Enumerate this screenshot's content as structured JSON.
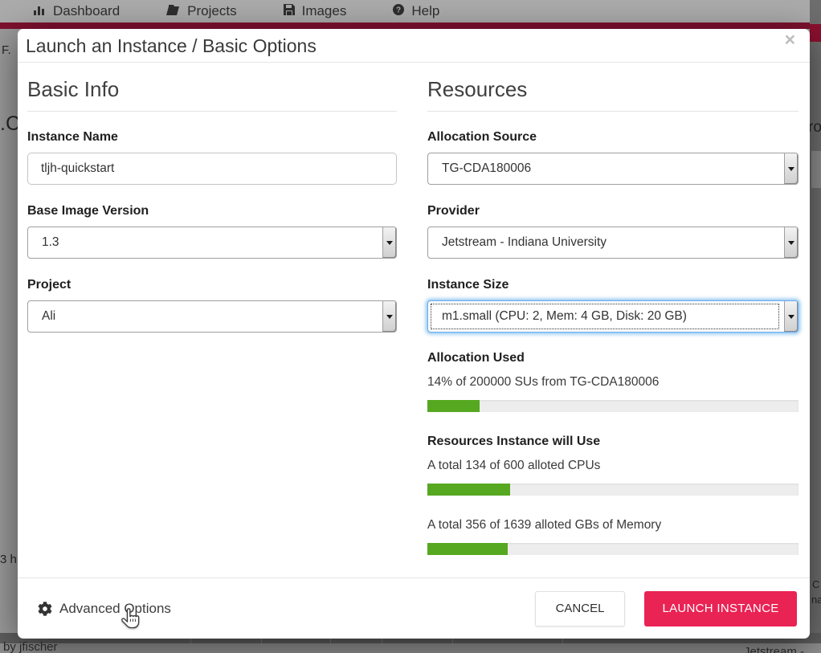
{
  "background": {
    "nav_items": [
      {
        "label": "Dashboard",
        "icon": "bar-chart-icon"
      },
      {
        "label": "Projects",
        "icon": "folder-icon"
      },
      {
        "label": "Images",
        "icon": "floppy-icon"
      },
      {
        "label": "Help",
        "icon": "help-icon"
      }
    ],
    "fragments": {
      "left_top": "F.",
      "left_mid": ".C",
      "right_mid": "ro",
      "left_bottom": "3 h",
      "right_c": "C",
      "right_na": "na",
      "footer_left": "by jfischer",
      "footer_right": "Jetstream - TACC"
    }
  },
  "modal": {
    "title": "Launch an Instance / Basic Options",
    "close_label": "×",
    "basic": {
      "heading": "Basic Info",
      "instance_name": {
        "label": "Instance Name",
        "value": "tljh-quickstart"
      },
      "base_image_version": {
        "label": "Base Image Version",
        "value": "1.3"
      },
      "project": {
        "label": "Project",
        "value": "Ali"
      }
    },
    "resources": {
      "heading": "Resources",
      "allocation_source": {
        "label": "Allocation Source",
        "value": "TG-CDA180006"
      },
      "provider": {
        "label": "Provider",
        "value": "Jetstream - Indiana University"
      },
      "instance_size": {
        "label": "Instance Size",
        "value": "m1.small (CPU: 2, Mem: 4 GB, Disk: 20 GB)"
      },
      "allocation_used": {
        "heading": "Allocation Used",
        "text": "14% of 200000 SUs from TG-CDA180006",
        "percent": 14
      },
      "instance_usage": {
        "heading": "Resources Instance will Use",
        "cpu_text": "A total 134 of 600 alloted CPUs",
        "cpu_percent": 22.3,
        "mem_text": "A total 356 of 1639 alloted GBs of Memory",
        "mem_percent": 21.7
      }
    },
    "footer": {
      "advanced_options": "Advanced Options",
      "cancel": "CANCEL",
      "launch": "LAUNCH INSTANCE"
    }
  },
  "colors": {
    "progress_green": "#56a821",
    "launch_pink": "#e92354",
    "accent_maroon": "#7e1130"
  }
}
